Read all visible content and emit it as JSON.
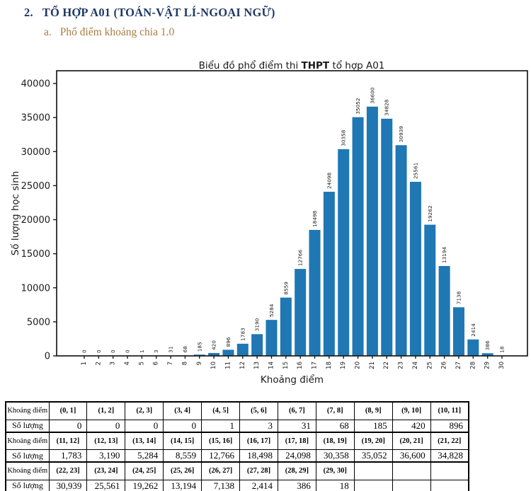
{
  "header": {
    "number": "2.",
    "title": "TỔ HỢP A01 (TOÁN-VẬT LÍ-NGOẠI NGỮ)",
    "sub_label": "a.",
    "sub_title": "Phổ điểm khoảng chia 1.0"
  },
  "chart_data": {
    "type": "bar",
    "title": "Biểu đồ phổ điểm thi THPT tổ hợp A01",
    "title_parts": {
      "prefix": "Biểu đồ phổ điểm thi ",
      "bold": "THPT",
      "suffix": " tổ hợp A01"
    },
    "xlabel": "Khoảng điểm",
    "ylabel": "Số lượng học sinh",
    "categories": [
      1,
      2,
      3,
      4,
      5,
      6,
      7,
      8,
      9,
      10,
      11,
      12,
      13,
      14,
      15,
      16,
      17,
      18,
      19,
      20,
      21,
      22,
      23,
      24,
      25,
      26,
      27,
      28,
      29,
      30
    ],
    "values": [
      0,
      0,
      0,
      0,
      1,
      3,
      31,
      68,
      185,
      420,
      896,
      1783,
      3190,
      5284,
      8559,
      12766,
      18498,
      24098,
      30358,
      35052,
      36600,
      34828,
      30939,
      25561,
      19262,
      13194,
      7138,
      2414,
      386,
      18
    ],
    "yticks": [
      0,
      5000,
      10000,
      15000,
      20000,
      25000,
      30000,
      35000,
      40000
    ],
    "ylim": [
      0,
      41900
    ],
    "grid": false,
    "legend": null,
    "bar_labels_rotated": true,
    "xtick_rotation": 90,
    "bar_color": "#1f77b4",
    "axis_color": "#1a1a1a"
  },
  "table": {
    "rows": [
      {
        "type": "range",
        "header": "Khoảng điểm",
        "cells": [
          "(0, 1]",
          "(1, 2]",
          "(2, 3]",
          "(3, 4]",
          "(4, 5]",
          "(5, 6]",
          "(6, 7]",
          "(7, 8]",
          "(8, 9]",
          "(9, 10]",
          "(10, 11]"
        ]
      },
      {
        "type": "count",
        "header": "Số lượng",
        "cells": [
          "0",
          "0",
          "0",
          "0",
          "1",
          "3",
          "31",
          "68",
          "185",
          "420",
          "896"
        ]
      },
      {
        "type": "range",
        "header": "Khoảng điểm",
        "cells": [
          "(11, 12]",
          "(12, 13]",
          "(13, 14]",
          "(14, 15]",
          "(15, 16]",
          "(16, 17]",
          "(17, 18]",
          "(18, 19]",
          "(19, 20]",
          "(20, 21]",
          "(21, 22]"
        ]
      },
      {
        "type": "count",
        "header": "Số lượng",
        "cells": [
          "1,783",
          "3,190",
          "5,284",
          "8,559",
          "12,766",
          "18,498",
          "24,098",
          "30,358",
          "35,052",
          "36,600",
          "34,828"
        ]
      },
      {
        "type": "range",
        "header": "Khoảng điểm",
        "cells": [
          "(22, 23]",
          "(23, 24]",
          "(24, 25]",
          "(25, 26]",
          "(26, 27]",
          "(27, 28]",
          "(28, 29]",
          "(29, 30]",
          "",
          "",
          ""
        ]
      },
      {
        "type": "count",
        "header": "Số lượng",
        "cells": [
          "30,939",
          "25,561",
          "19,262",
          "13,194",
          "7,138",
          "2,414",
          "386",
          "18",
          "",
          "",
          ""
        ]
      }
    ]
  }
}
